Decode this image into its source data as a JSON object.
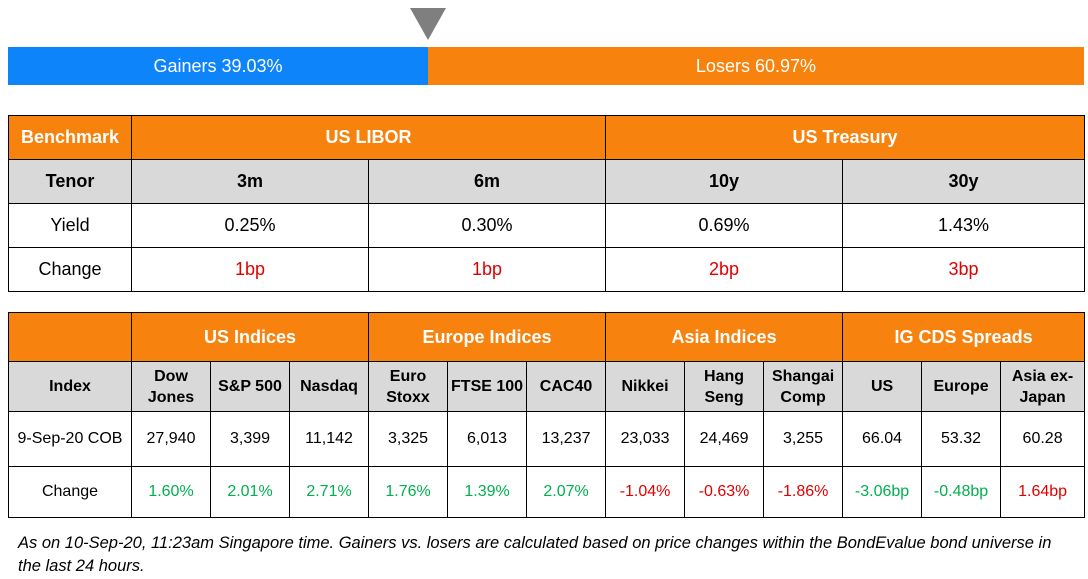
{
  "ratio": {
    "gainers_label": "Gainers 39.03%",
    "losers_label": "Losers 60.97%",
    "gainers_fraction": 0.3903,
    "losers_fraction": 0.6097,
    "gainers_color": "#0d84f9",
    "losers_color": "#f7820d"
  },
  "benchmark_table": {
    "header": {
      "benchmark": "Benchmark",
      "libor": "US LIBOR",
      "treasury": "US Treasury"
    },
    "tenor_row": {
      "label": "Tenor",
      "values": [
        "3m",
        "6m",
        "10y",
        "30y"
      ]
    },
    "yield_row": {
      "label": "Yield",
      "values": [
        "0.25%",
        "0.30%",
        "0.69%",
        "1.43%"
      ]
    },
    "change_row": {
      "label": "Change",
      "values": [
        "1bp",
        "1bp",
        "2bp",
        "3bp"
      ]
    }
  },
  "indices_table": {
    "groups": {
      "us": "US Indices",
      "europe": "Europe Indices",
      "asia": "Asia Indices",
      "cds": "IG CDS Spreads"
    },
    "index_label": "Index",
    "columns": [
      {
        "l1": "Dow",
        "l2": "Jones"
      },
      {
        "l1": "S&P 500"
      },
      {
        "l1": "Nasdaq"
      },
      {
        "l1": "Euro",
        "l2": "Stoxx"
      },
      {
        "l1": "FTSE 100"
      },
      {
        "l1": "CAC40"
      },
      {
        "l1": "Nikkei"
      },
      {
        "l1": "Hang",
        "l2": "Seng"
      },
      {
        "l1": "Shangai",
        "l2": "Comp"
      },
      {
        "l1": "US"
      },
      {
        "l1": "Europe"
      },
      {
        "l1": "Asia ex-",
        "l2": "Japan"
      }
    ],
    "level_row": {
      "label": "9-Sep-20 COB",
      "values": [
        "27,940",
        "3,399",
        "11,142",
        "3,325",
        "6,013",
        "13,237",
        "23,033",
        "24,469",
        "3,255",
        "66.04",
        "53.32",
        "60.28"
      ]
    },
    "change_row": {
      "label": "Change",
      "values": [
        "1.60%",
        "2.01%",
        "2.71%",
        "1.76%",
        "1.39%",
        "2.07%",
        "-1.04%",
        "-0.63%",
        "-1.86%",
        "-3.06bp",
        "-0.48bp",
        "1.64bp"
      ]
    }
  },
  "colors": {
    "header_orange": "#f7820d",
    "subheader_gray": "#d9d9d9",
    "up_green": "#00b050",
    "down_red": "#e00000"
  },
  "footnote": "As on 10-Sep-20, 11:23am Singapore time. Gainers vs. losers are calculated based on price changes within the BondEvalue bond universe in the last 24 hours."
}
